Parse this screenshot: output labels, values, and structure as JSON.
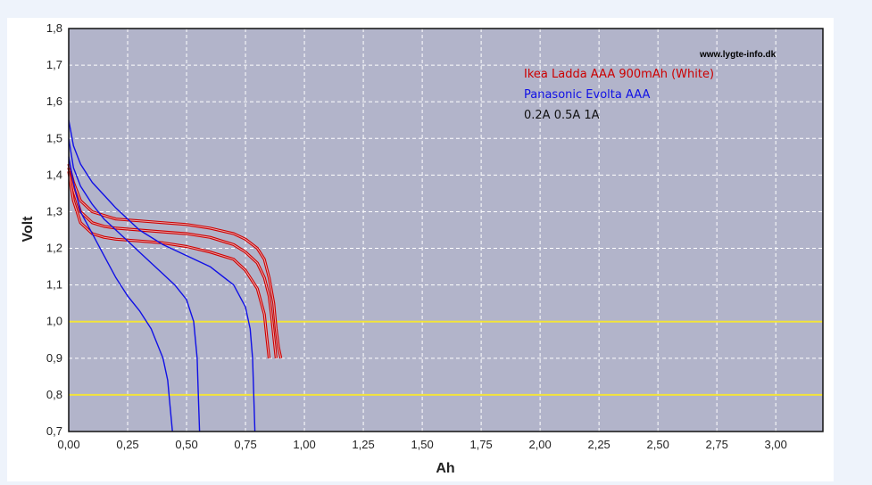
{
  "colors": {
    "page_background": "#eef3fb",
    "plot_background": "#b2b4ca",
    "grid": "#ffffff",
    "reference_line": "#f2e33a",
    "ikea": "#cc0000",
    "panasonic": "#1010e6",
    "text": "#222222"
  },
  "chart_data": {
    "type": "line",
    "title": "",
    "xlabel": "Ah",
    "ylabel": "Volt",
    "xlim": [
      0,
      3.2
    ],
    "ylim": [
      0.7,
      1.8
    ],
    "x_ticks": [
      "0,00",
      "0,25",
      "0,50",
      "0,75",
      "1,00",
      "1,25",
      "1,50",
      "1,75",
      "2,00",
      "2,25",
      "2,50",
      "2,75",
      "3,00"
    ],
    "y_ticks": [
      "0,7",
      "0,8",
      "0,9",
      "1,0",
      "1,1",
      "1,2",
      "1,3",
      "1,4",
      "1,5",
      "1,6",
      "1,7",
      "1,8"
    ],
    "grid": true,
    "legend_placement": "top-right",
    "watermark": "www.lygte-info.dk",
    "legend": {
      "ikea_label": "Ikea Ladda AAA 900mAh (White)",
      "panasonic_label": "Panasonic Evolta AAA",
      "currents_label": "0.2A   0.5A   1A"
    },
    "reference_lines": [
      1.0,
      0.8
    ],
    "series": [
      {
        "name": "Ikea Ladda AAA 900mAh (White)",
        "current": "0.2A",
        "color": "#cc0000",
        "x": [
          0,
          0.02,
          0.05,
          0.1,
          0.15,
          0.2,
          0.3,
          0.4,
          0.5,
          0.6,
          0.7,
          0.75,
          0.8,
          0.83,
          0.85,
          0.87,
          0.88,
          0.89,
          0.9
        ],
        "y": [
          1.43,
          1.38,
          1.33,
          1.3,
          1.29,
          1.28,
          1.275,
          1.27,
          1.265,
          1.255,
          1.24,
          1.225,
          1.2,
          1.17,
          1.12,
          1.05,
          0.98,
          0.93,
          0.9
        ]
      },
      {
        "name": "Ikea Ladda AAA 900mAh (White)",
        "current": "0.5A",
        "color": "#cc0000",
        "x": [
          0,
          0.02,
          0.05,
          0.1,
          0.15,
          0.2,
          0.3,
          0.4,
          0.5,
          0.6,
          0.7,
          0.75,
          0.8,
          0.83,
          0.85,
          0.86,
          0.87,
          0.88
        ],
        "y": [
          1.42,
          1.36,
          1.3,
          1.27,
          1.26,
          1.255,
          1.25,
          1.245,
          1.24,
          1.23,
          1.21,
          1.19,
          1.16,
          1.12,
          1.07,
          1.02,
          0.96,
          0.9
        ]
      },
      {
        "name": "Ikea Ladda AAA 900mAh (White)",
        "current": "1A",
        "color": "#cc0000",
        "x": [
          0,
          0.02,
          0.05,
          0.1,
          0.15,
          0.2,
          0.3,
          0.4,
          0.5,
          0.6,
          0.7,
          0.75,
          0.8,
          0.83,
          0.84,
          0.85
        ],
        "y": [
          1.41,
          1.33,
          1.27,
          1.24,
          1.23,
          1.225,
          1.22,
          1.215,
          1.205,
          1.19,
          1.17,
          1.14,
          1.09,
          1.02,
          0.96,
          0.9
        ]
      },
      {
        "name": "Panasonic Evolta AAA",
        "current": "0.2A",
        "color": "#1010e6",
        "x": [
          0,
          0.02,
          0.05,
          0.1,
          0.2,
          0.3,
          0.4,
          0.5,
          0.6,
          0.7,
          0.75,
          0.77,
          0.78,
          0.785,
          0.79
        ],
        "y": [
          1.55,
          1.48,
          1.43,
          1.38,
          1.31,
          1.25,
          1.21,
          1.18,
          1.15,
          1.1,
          1.04,
          0.98,
          0.9,
          0.8,
          0.7
        ]
      },
      {
        "name": "Panasonic Evolta AAA",
        "current": "0.5A",
        "color": "#1010e6",
        "x": [
          0,
          0.02,
          0.05,
          0.1,
          0.15,
          0.2,
          0.25,
          0.3,
          0.35,
          0.4,
          0.45,
          0.5,
          0.53,
          0.545,
          0.55,
          0.555
        ],
        "y": [
          1.5,
          1.42,
          1.37,
          1.32,
          1.28,
          1.25,
          1.22,
          1.19,
          1.16,
          1.13,
          1.1,
          1.06,
          1.0,
          0.9,
          0.8,
          0.7
        ]
      },
      {
        "name": "Panasonic Evolta AAA",
        "current": "1A",
        "color": "#1010e6",
        "x": [
          0,
          0.02,
          0.05,
          0.1,
          0.15,
          0.2,
          0.25,
          0.3,
          0.35,
          0.4,
          0.42,
          0.43,
          0.44
        ],
        "y": [
          1.45,
          1.38,
          1.3,
          1.24,
          1.18,
          1.12,
          1.07,
          1.03,
          0.98,
          0.9,
          0.84,
          0.77,
          0.7
        ]
      }
    ]
  }
}
